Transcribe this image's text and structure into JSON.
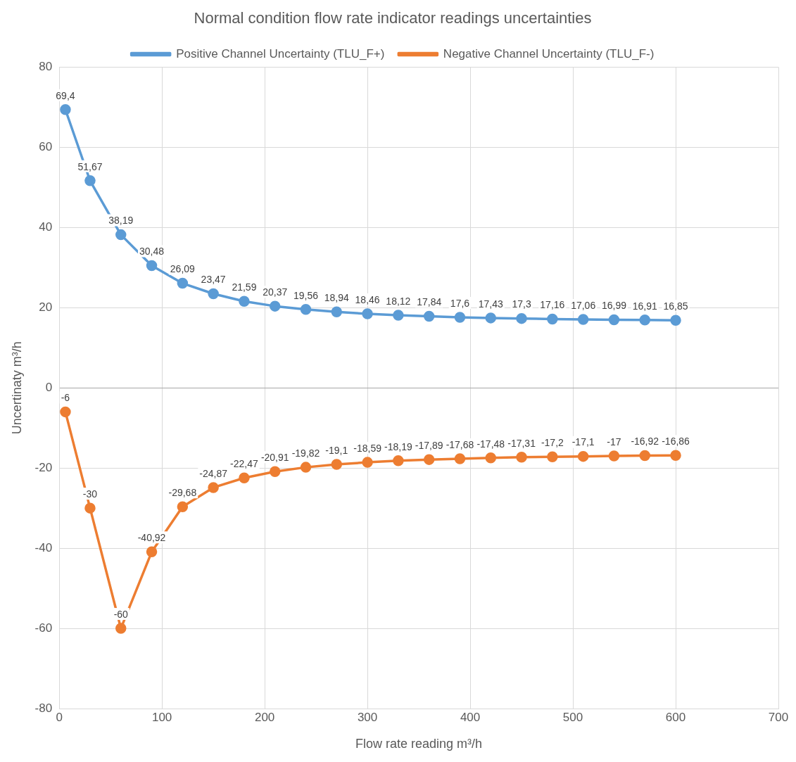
{
  "chart_data": {
    "type": "line",
    "title": "Normal condition flow rate indicator readings uncertainties",
    "xlabel": "Flow rate reading m³/h",
    "ylabel": "Uncertinaty m³/h",
    "x": [
      6,
      30,
      60,
      90,
      120,
      150,
      180,
      210,
      240,
      270,
      300,
      330,
      360,
      390,
      420,
      450,
      480,
      510,
      540,
      570,
      600
    ],
    "series": [
      {
        "name": "Positive Channel Uncertainty (TLU_F+)",
        "color": "#5b9bd5",
        "values": [
          69.4,
          51.67,
          38.19,
          30.48,
          26.09,
          23.47,
          21.59,
          20.37,
          19.56,
          18.94,
          18.46,
          18.12,
          17.84,
          17.6,
          17.43,
          17.3,
          17.16,
          17.06,
          16.99,
          16.91,
          16.85
        ],
        "value_labels": [
          "69,4",
          "51,67",
          "38,19",
          "30,48",
          "26,09",
          "23,47",
          "21,59",
          "20,37",
          "19,56",
          "18,94",
          "18,46",
          "18,12",
          "17,84",
          "17,6",
          "17,43",
          "17,3",
          "17,16",
          "17,06",
          "16,99",
          "16,91",
          "16,85"
        ]
      },
      {
        "name": "Negative Channel Uncertainty (TLU_F-)",
        "color": "#ed7d31",
        "values": [
          -6,
          -30,
          -60,
          -40.92,
          -29.68,
          -24.87,
          -22.47,
          -20.91,
          -19.82,
          -19.1,
          -18.59,
          -18.19,
          -17.89,
          -17.68,
          -17.48,
          -17.31,
          -17.2,
          -17.1,
          -17,
          -16.92,
          -16.86
        ],
        "value_labels": [
          "-6",
          "-30",
          "-60",
          "-40,92",
          "-29,68",
          "-24,87",
          "-22,47",
          "-20,91",
          "-19,82",
          "-19,1",
          "-18,59",
          "-18,19",
          "-17,89",
          "-17,68",
          "-17,48",
          "-17,31",
          "-17,2",
          "-17,1",
          "-17",
          "-16,92",
          "-16,86"
        ]
      }
    ],
    "xlim": [
      0,
      700
    ],
    "xticks": [
      0,
      100,
      200,
      300,
      400,
      500,
      600,
      700
    ],
    "ylim": [
      -80,
      80
    ],
    "yticks": [
      -80,
      -60,
      -40,
      -20,
      0,
      20,
      40,
      60,
      80
    ],
    "grid": true,
    "legend": "top",
    "marker": "circle",
    "line_style": "solid"
  }
}
